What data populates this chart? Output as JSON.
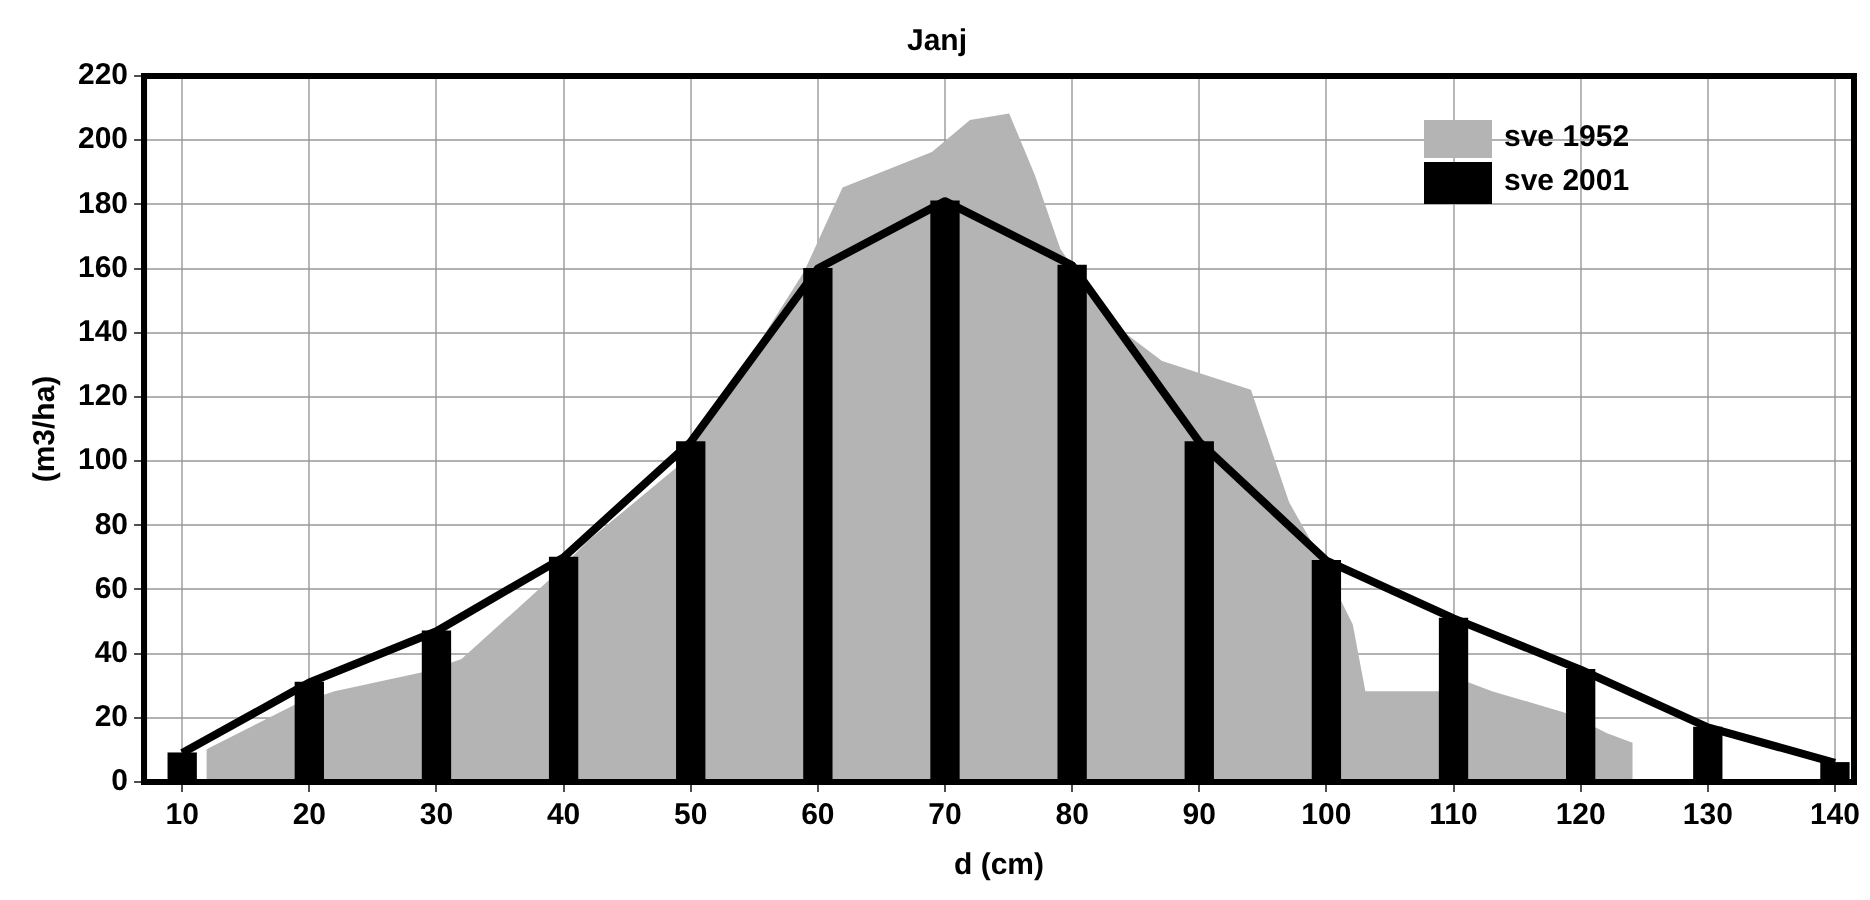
{
  "chart_data": {
    "type": "area",
    "title": "Janj",
    "xlabel": "d (cm)",
    "ylabel": "(m3/ha)",
    "xlim": [
      7,
      141.5
    ],
    "xticks": [
      10,
      20,
      30,
      40,
      50,
      60,
      70,
      80,
      90,
      100,
      110,
      120,
      130,
      140
    ],
    "ylim": [
      0,
      220
    ],
    "yticks": [
      0,
      20,
      40,
      60,
      80,
      100,
      120,
      140,
      160,
      180,
      200,
      220
    ],
    "grid": true,
    "legend": "top right",
    "marker": "none",
    "series": [
      {
        "name": "sve 1952",
        "color": "#b4b4b4",
        "x": [
          12,
          12,
          19,
          22,
          29,
          32,
          39,
          42,
          49,
          52,
          59,
          62,
          69,
          72,
          75,
          77,
          79,
          83,
          87,
          94,
          97,
          99,
          102,
          103,
          109,
          111,
          113,
          119,
          122,
          124,
          124
        ],
        "values": [
          0,
          10,
          24,
          28,
          34,
          38,
          63,
          75,
          98,
          115,
          159,
          185,
          196,
          206,
          208,
          189,
          166,
          143,
          131,
          122,
          87,
          73,
          49,
          28,
          28,
          31,
          28,
          21,
          15,
          12,
          0
        ]
      },
      {
        "name": "sve 2001",
        "type": "bar",
        "color": "#000000",
        "x": [
          10,
          20,
          30,
          40,
          50,
          60,
          70,
          80,
          90,
          100,
          110,
          120,
          130,
          140
        ],
        "values": [
          9,
          31,
          47,
          70,
          106,
          160,
          181,
          161,
          106,
          69,
          51,
          35,
          17,
          6
        ]
      },
      {
        "type": "line",
        "color": "#000000",
        "x": [
          10,
          20,
          30,
          40,
          50,
          60,
          70,
          80,
          90,
          100,
          110,
          120,
          130,
          140
        ],
        "values": [
          9,
          31,
          47,
          70,
          106,
          160,
          181,
          161,
          106,
          69,
          51,
          35,
          17,
          6
        ]
      }
    ]
  }
}
